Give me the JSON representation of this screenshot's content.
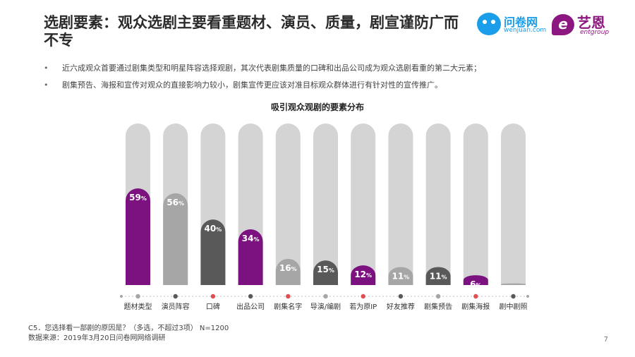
{
  "title": "选剧要素：观众选剧主要看重题材、演员、质量，剧宣谨防广而不专",
  "logos": {
    "wenjuan": {
      "name": "问卷网",
      "url": "wenjuan.com"
    },
    "yien": {
      "mark": "e",
      "name": "艺恩",
      "sub": "entgroup"
    }
  },
  "bullets": [
    "近六成观众首要通过剧集类型和明星阵容选择观剧，其次代表剧集质量的口碑和出品公司成为观众选剧看重的第二大元素；",
    "剧集预告、海报和宣传对观众的直接影响力较小，剧集宣传更应该对准目标观众群体进行有针对性的宣传推广。"
  ],
  "chart_data": {
    "type": "bar",
    "title": "吸引观众观剧的要素分布",
    "categories": [
      "题材类型",
      "演员阵容",
      "口碑",
      "出品公司",
      "剧集名字",
      "导演/编剧",
      "若为原IP",
      "好友推荐",
      "剧集预告",
      "剧集海报",
      "剧中剧照"
    ],
    "values": [
      59,
      56,
      40,
      34,
      16,
      15,
      12,
      11,
      11,
      6,
      1
    ],
    "unit": "%",
    "ylim": [
      0,
      100
    ],
    "bar_colors": [
      "#7b1280",
      "#a6a6a6",
      "#595959",
      "#7b1280",
      "#a6a6a6",
      "#595959",
      "#7b1280",
      "#a6a6a6",
      "#595959",
      "#7b1280",
      "#a6a6a6"
    ],
    "track_color": "#d4d4d4",
    "dot_colors": [
      "#a6a6a6",
      "#595959",
      "#e05050",
      "#595959",
      "#e05050",
      "#a6a6a6",
      "#e05050",
      "#595959",
      "#a6a6a6",
      "#e05050",
      "#595959"
    ]
  },
  "footer": {
    "question": "C5．您选择看一部剧的原因是？（多选，不超过3项） N=1200",
    "source": "数据来源：2019年3月20日问卷网网络调研"
  },
  "page_number": "7"
}
